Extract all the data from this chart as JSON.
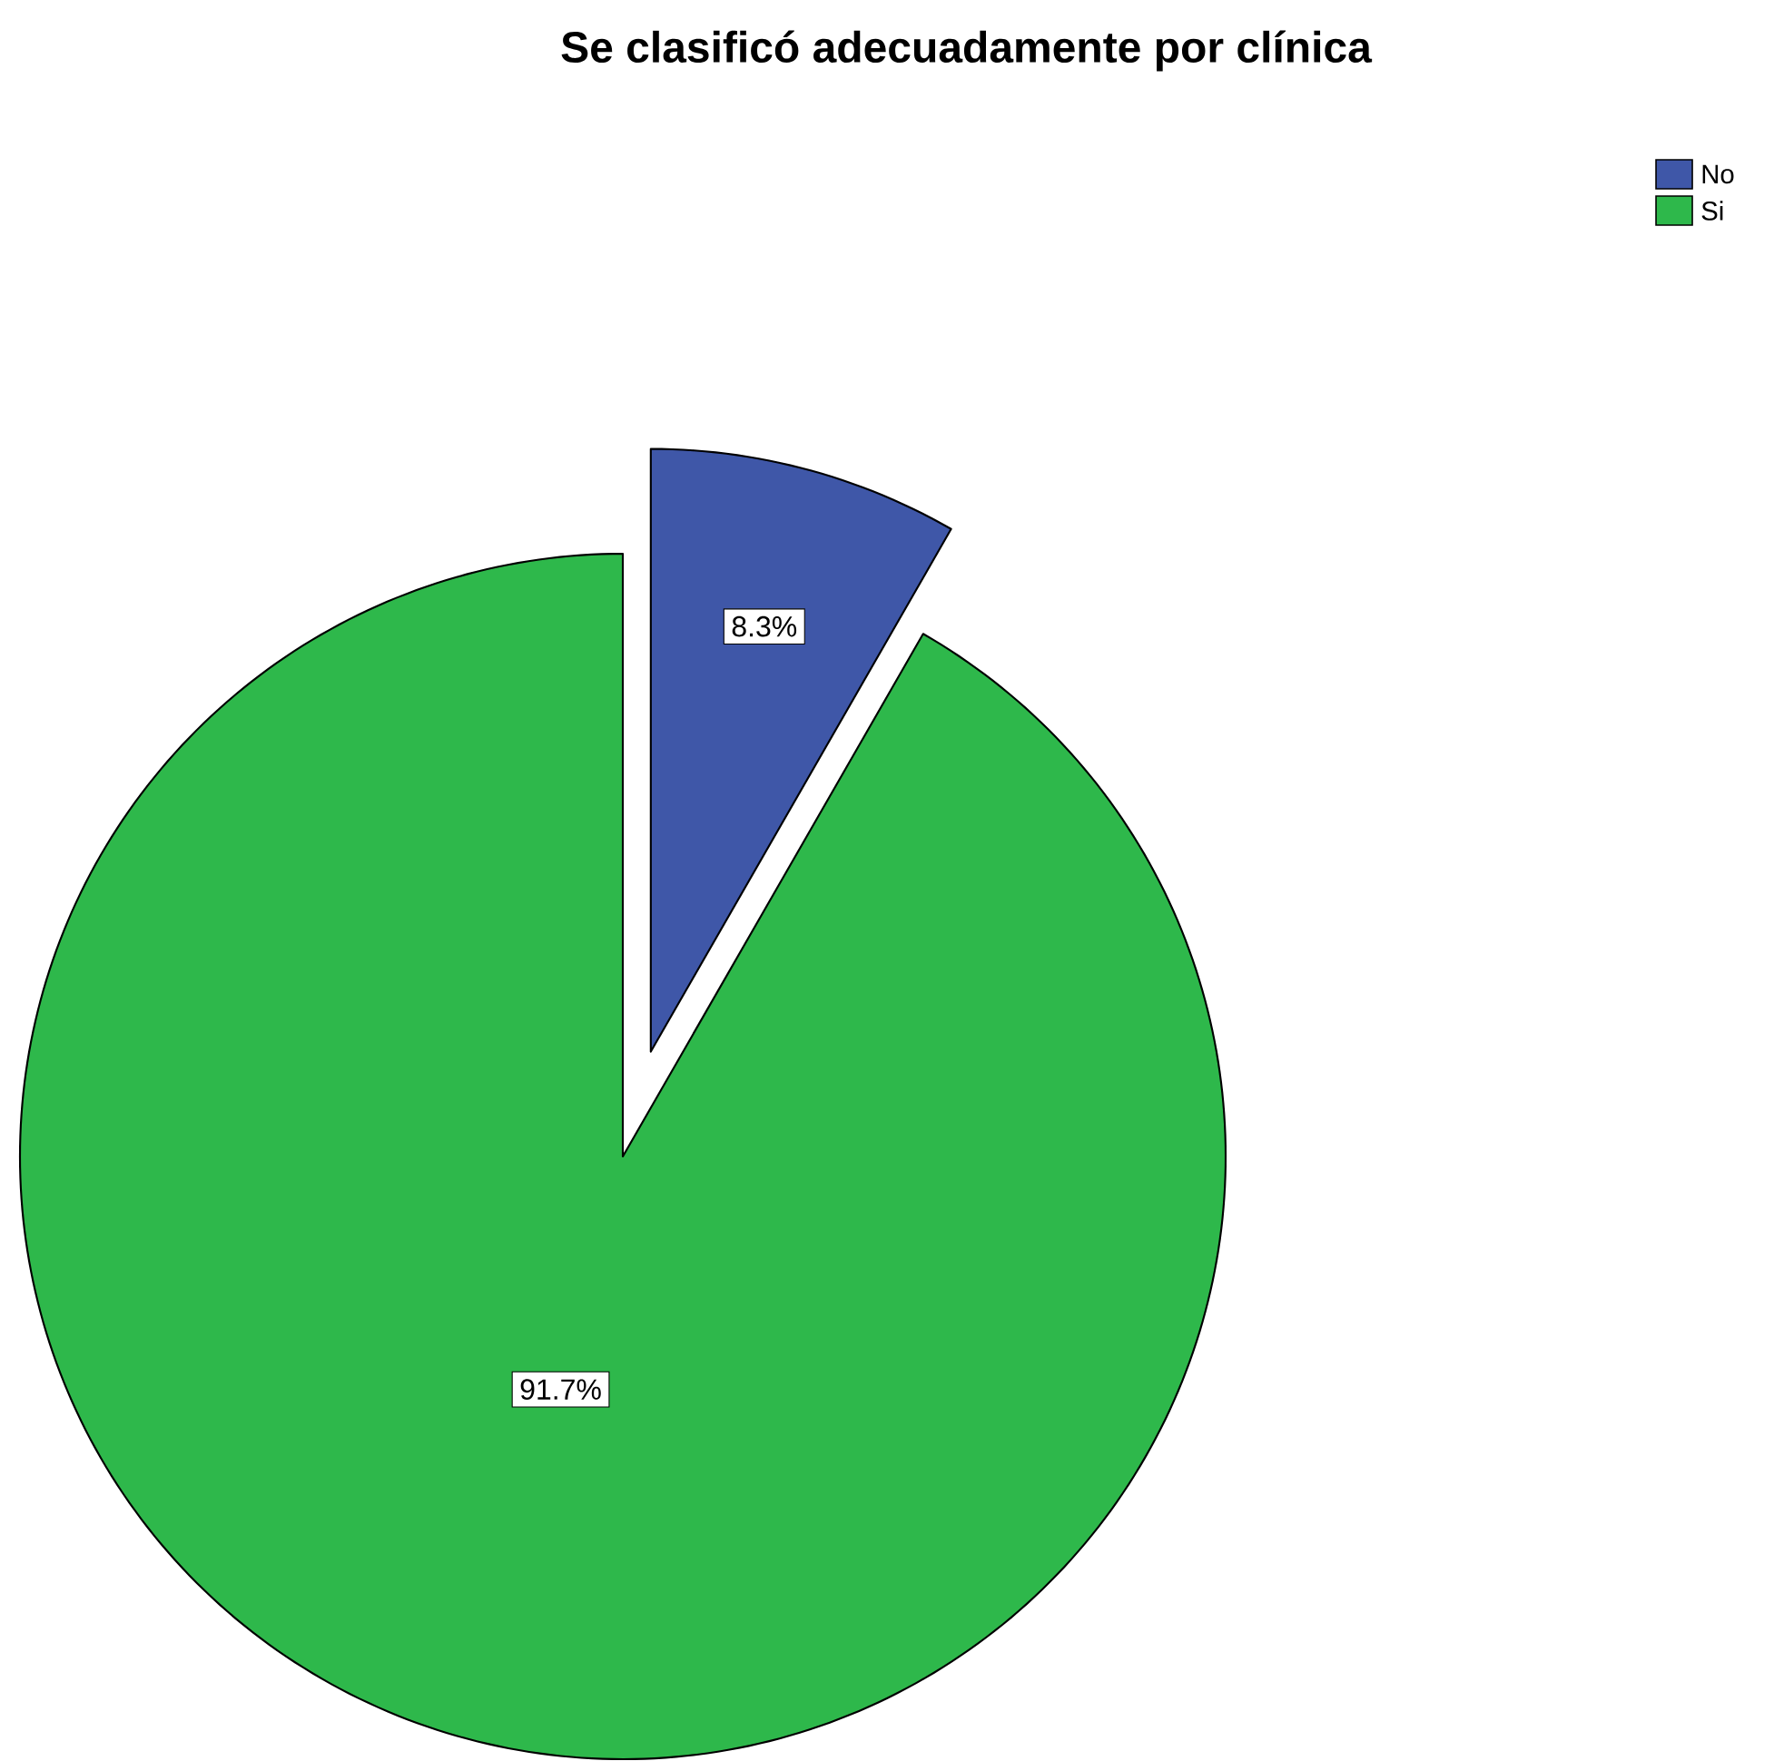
{
  "chart_data": {
    "type": "pie",
    "title": "Se clasificó adecuadamente por clínica",
    "categories": [
      "No",
      "Si"
    ],
    "values": [
      8.3,
      91.7
    ],
    "value_labels": [
      "8.3%",
      "91.7%"
    ],
    "colors": [
      "#3f57a8",
      "#2eb84b"
    ],
    "legend": "top right"
  }
}
